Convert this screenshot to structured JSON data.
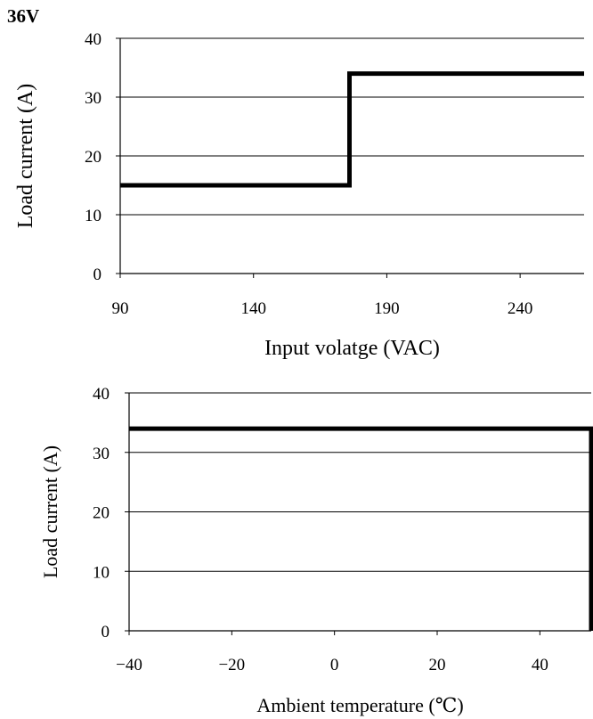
{
  "page": {
    "title": "36V"
  },
  "chart_data": [
    {
      "type": "line",
      "title": "",
      "xlabel": "Input volatge (VAC)",
      "ylabel": "Load current (A)",
      "xlim": [
        90,
        264
      ],
      "ylim": [
        0,
        40
      ],
      "xticks": [
        "90",
        "140",
        "190",
        "240"
      ],
      "yticks": [
        "0",
        "10",
        "20",
        "30",
        "40"
      ],
      "grid": "horizontal",
      "series": [
        {
          "x": [
            90,
            176,
            176,
            264
          ],
          "y": [
            15,
            15,
            34,
            34
          ]
        }
      ]
    },
    {
      "type": "line",
      "title": "",
      "xlabel": "Ambient temperature (℃)",
      "ylabel": "Load current (A)",
      "xlim": [
        -40,
        50
      ],
      "ylim": [
        0,
        40
      ],
      "xticks": [
        "−40",
        "−20",
        "0",
        "20",
        "40"
      ],
      "yticks": [
        "0",
        "10",
        "20",
        "30",
        "40"
      ],
      "grid": "horizontal",
      "series": [
        {
          "x": [
            -40,
            50,
            50
          ],
          "y": [
            34,
            34,
            0
          ]
        }
      ]
    }
  ]
}
